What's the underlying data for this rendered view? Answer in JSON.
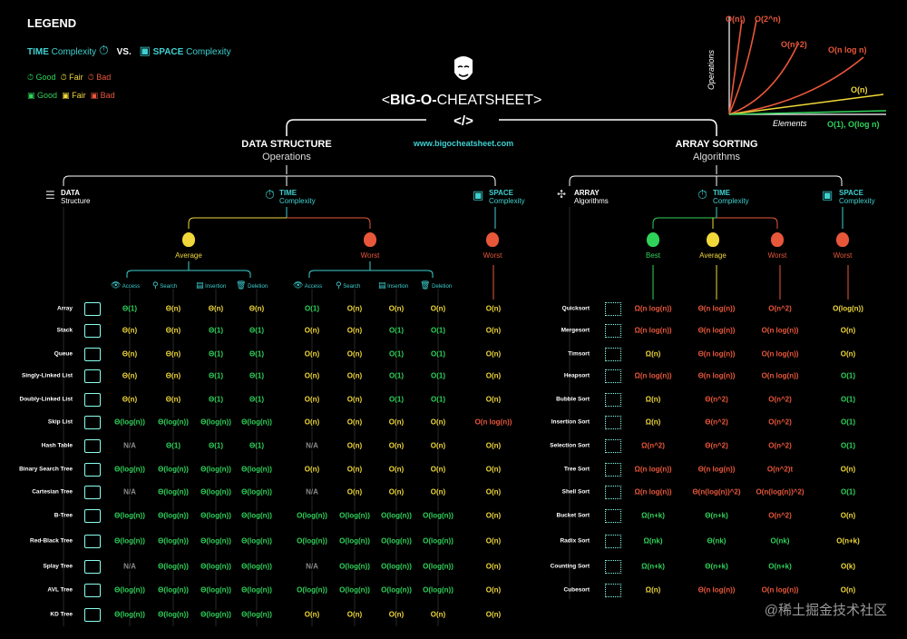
{
  "legend": {
    "title": "LEGEND",
    "time": "TIME",
    "time_rest": "Complexity",
    "vs": "VS.",
    "space": "SPACE",
    "space_rest": "Complexity",
    "good": "Good",
    "fair": "Fair",
    "bad": "Bad"
  },
  "title": {
    "pre": "<",
    "main": "BIG-O-",
    "rest": "CHEATSHEET",
    "post": ">",
    "code": "</>",
    "url": "www.bigocheatsheet.com"
  },
  "graph": {
    "ylabel": "Operations",
    "xlabel": "Elements",
    "curves": [
      "O(n!)",
      "O(2^n)",
      "O(n^2)",
      "O(n log n)",
      "O(n)",
      "O(1), O(log n)"
    ]
  },
  "ds": {
    "title": "DATA STRUCTURE",
    "subtitle": "Operations",
    "col_head": "DATA",
    "col_head2": "Structure",
    "time": "TIME",
    "time2": "Complexity",
    "space": "SPACE",
    "space2": "Complexity",
    "average": "Average",
    "worst": "Worst",
    "worst_space": "Worst",
    "ops": [
      "Access",
      "Search",
      "Insertion",
      "Deletion"
    ],
    "rows": [
      {
        "name": "Array",
        "avg": [
          "Θ(1)",
          "Θ(n)",
          "Θ(n)",
          "Θ(n)"
        ],
        "worst": [
          "O(1)",
          "O(n)",
          "O(n)",
          "O(n)"
        ],
        "space": "O(n)",
        "ac": [
          "g",
          "f",
          "f",
          "f"
        ],
        "wc": [
          "g",
          "f",
          "f",
          "f"
        ],
        "sc": "f"
      },
      {
        "name": "Stack",
        "avg": [
          "Θ(n)",
          "Θ(n)",
          "Θ(1)",
          "Θ(1)"
        ],
        "worst": [
          "O(n)",
          "O(n)",
          "O(1)",
          "O(1)"
        ],
        "space": "O(n)",
        "ac": [
          "f",
          "f",
          "g",
          "g"
        ],
        "wc": [
          "f",
          "f",
          "g",
          "g"
        ],
        "sc": "f"
      },
      {
        "name": "Queue",
        "avg": [
          "Θ(n)",
          "Θ(n)",
          "Θ(1)",
          "Θ(1)"
        ],
        "worst": [
          "O(n)",
          "O(n)",
          "O(1)",
          "O(1)"
        ],
        "space": "O(n)",
        "ac": [
          "f",
          "f",
          "g",
          "g"
        ],
        "wc": [
          "f",
          "f",
          "g",
          "g"
        ],
        "sc": "f"
      },
      {
        "name": "Singly-Linked List",
        "avg": [
          "Θ(n)",
          "Θ(n)",
          "Θ(1)",
          "Θ(1)"
        ],
        "worst": [
          "O(n)",
          "O(n)",
          "O(1)",
          "O(1)"
        ],
        "space": "O(n)",
        "ac": [
          "f",
          "f",
          "g",
          "g"
        ],
        "wc": [
          "f",
          "f",
          "g",
          "g"
        ],
        "sc": "f"
      },
      {
        "name": "Doubly-Linked List",
        "avg": [
          "Θ(n)",
          "Θ(n)",
          "Θ(1)",
          "Θ(1)"
        ],
        "worst": [
          "O(n)",
          "O(n)",
          "O(1)",
          "O(1)"
        ],
        "space": "O(n)",
        "ac": [
          "f",
          "f",
          "g",
          "g"
        ],
        "wc": [
          "f",
          "f",
          "g",
          "g"
        ],
        "sc": "f"
      },
      {
        "name": "Skip List",
        "avg": [
          "Θ(log(n))",
          "Θ(log(n))",
          "Θ(log(n))",
          "Θ(log(n))"
        ],
        "worst": [
          "O(n)",
          "O(n)",
          "O(n)",
          "O(n)"
        ],
        "space": "O(n log(n))",
        "ac": [
          "g",
          "g",
          "g",
          "g"
        ],
        "wc": [
          "f",
          "f",
          "f",
          "f"
        ],
        "sc": "b"
      },
      {
        "name": "Hash Table",
        "avg": [
          "N/A",
          "Θ(1)",
          "Θ(1)",
          "Θ(1)"
        ],
        "worst": [
          "N/A",
          "O(n)",
          "O(n)",
          "O(n)"
        ],
        "space": "O(n)",
        "ac": [
          "n",
          "g",
          "g",
          "g"
        ],
        "wc": [
          "n",
          "f",
          "f",
          "f"
        ],
        "sc": "f"
      },
      {
        "name": "Binary Search Tree",
        "avg": [
          "Θ(log(n))",
          "Θ(log(n))",
          "Θ(log(n))",
          "Θ(log(n))"
        ],
        "worst": [
          "O(n)",
          "O(n)",
          "O(n)",
          "O(n)"
        ],
        "space": "O(n)",
        "ac": [
          "g",
          "g",
          "g",
          "g"
        ],
        "wc": [
          "f",
          "f",
          "f",
          "f"
        ],
        "sc": "f"
      },
      {
        "name": "Cartesian Tree",
        "avg": [
          "N/A",
          "Θ(log(n))",
          "Θ(log(n))",
          "Θ(log(n))"
        ],
        "worst": [
          "N/A",
          "O(n)",
          "O(n)",
          "O(n)"
        ],
        "space": "O(n)",
        "ac": [
          "n",
          "g",
          "g",
          "g"
        ],
        "wc": [
          "n",
          "f",
          "f",
          "f"
        ],
        "sc": "f"
      },
      {
        "name": "B-Tree",
        "avg": [
          "Θ(log(n))",
          "Θ(log(n))",
          "Θ(log(n))",
          "Θ(log(n))"
        ],
        "worst": [
          "O(log(n))",
          "O(log(n))",
          "O(log(n))",
          "O(log(n))"
        ],
        "space": "O(n)",
        "ac": [
          "g",
          "g",
          "g",
          "g"
        ],
        "wc": [
          "g",
          "g",
          "g",
          "g"
        ],
        "sc": "f"
      },
      {
        "name": "Red-Black Tree",
        "avg": [
          "Θ(log(n))",
          "Θ(log(n))",
          "Θ(log(n))",
          "Θ(log(n))"
        ],
        "worst": [
          "O(log(n))",
          "O(log(n))",
          "O(log(n))",
          "O(log(n))"
        ],
        "space": "O(n)",
        "ac": [
          "g",
          "g",
          "g",
          "g"
        ],
        "wc": [
          "g",
          "g",
          "g",
          "g"
        ],
        "sc": "f"
      },
      {
        "name": "Splay Tree",
        "avg": [
          "N/A",
          "Θ(log(n))",
          "Θ(log(n))",
          "Θ(log(n))"
        ],
        "worst": [
          "N/A",
          "O(log(n))",
          "O(log(n))",
          "O(log(n))"
        ],
        "space": "O(n)",
        "ac": [
          "n",
          "g",
          "g",
          "g"
        ],
        "wc": [
          "n",
          "g",
          "g",
          "g"
        ],
        "sc": "f"
      },
      {
        "name": "AVL Tree",
        "avg": [
          "Θ(log(n))",
          "Θ(log(n))",
          "Θ(log(n))",
          "Θ(log(n))"
        ],
        "worst": [
          "O(log(n))",
          "O(log(n))",
          "O(log(n))",
          "O(log(n))"
        ],
        "space": "O(n)",
        "ac": [
          "g",
          "g",
          "g",
          "g"
        ],
        "wc": [
          "g",
          "g",
          "g",
          "g"
        ],
        "sc": "f"
      },
      {
        "name": "KD Tree",
        "avg": [
          "Θ(log(n))",
          "Θ(log(n))",
          "Θ(log(n))",
          "Θ(log(n))"
        ],
        "worst": [
          "O(n)",
          "O(n)",
          "O(n)",
          "O(n)"
        ],
        "space": "O(n)",
        "ac": [
          "g",
          "g",
          "g",
          "g"
        ],
        "wc": [
          "f",
          "f",
          "f",
          "f"
        ],
        "sc": "f"
      }
    ]
  },
  "sort": {
    "title": "ARRAY SORTING",
    "subtitle": "Algorithms",
    "col_head": "ARRAY",
    "col_head2": "Algorithms",
    "time": "TIME",
    "time2": "Complexity",
    "space": "SPACE",
    "space2": "Complexity",
    "best": "Best",
    "average": "Average",
    "worst": "Worst",
    "worst_space": "Worst",
    "rows": [
      {
        "name": "Quicksort",
        "v": [
          "Ω(n log(n))",
          "Θ(n log(n))",
          "O(n^2)",
          "O(log(n))"
        ],
        "c": [
          "b",
          "b",
          "b",
          "f"
        ]
      },
      {
        "name": "Mergesort",
        "v": [
          "Ω(n log(n))",
          "Θ(n log(n))",
          "O(n log(n))",
          "O(n)"
        ],
        "c": [
          "b",
          "b",
          "b",
          "f"
        ]
      },
      {
        "name": "Timsort",
        "v": [
          "Ω(n)",
          "Θ(n log(n))",
          "O(n log(n))",
          "O(n)"
        ],
        "c": [
          "f",
          "b",
          "b",
          "f"
        ]
      },
      {
        "name": "Heapsort",
        "v": [
          "Ω(n log(n))",
          "Θ(n log(n))",
          "O(n log(n))",
          "O(1)"
        ],
        "c": [
          "b",
          "b",
          "b",
          "g"
        ]
      },
      {
        "name": "Bubble Sort",
        "v": [
          "Ω(n)",
          "Θ(n^2)",
          "O(n^2)",
          "O(1)"
        ],
        "c": [
          "f",
          "b",
          "b",
          "g"
        ]
      },
      {
        "name": "Insertion Sort",
        "v": [
          "Ω(n)",
          "Θ(n^2)",
          "O(n^2)",
          "O(1)"
        ],
        "c": [
          "f",
          "b",
          "b",
          "g"
        ]
      },
      {
        "name": "Selection Sort",
        "v": [
          "Ω(n^2)",
          "Θ(n^2)",
          "O(n^2)",
          "O(1)"
        ],
        "c": [
          "b",
          "b",
          "b",
          "g"
        ]
      },
      {
        "name": "Tree Sort",
        "v": [
          "Ω(n log(n))",
          "Θ(n log(n))",
          "O(n^2)t",
          "O(n)"
        ],
        "c": [
          "b",
          "b",
          "b",
          "f"
        ]
      },
      {
        "name": "Shell Sort",
        "v": [
          "Ω(n log(n))",
          "Θ(n(log(n))^2)",
          "O(n(log(n))^2)",
          "O(1)"
        ],
        "c": [
          "b",
          "b",
          "b",
          "g"
        ]
      },
      {
        "name": "Bucket Sort",
        "v": [
          "Ω(n+k)",
          "Θ(n+k)",
          "O(n^2)",
          "O(n)"
        ],
        "c": [
          "g",
          "g",
          "b",
          "f"
        ]
      },
      {
        "name": "Radix Sort",
        "v": [
          "Ω(nk)",
          "Θ(nk)",
          "O(nk)",
          "O(n+k)"
        ],
        "c": [
          "g",
          "g",
          "g",
          "f"
        ]
      },
      {
        "name": "Counting Sort",
        "v": [
          "Ω(n+k)",
          "Θ(n+k)",
          "O(n+k)",
          "O(k)"
        ],
        "c": [
          "g",
          "g",
          "g",
          "f"
        ]
      },
      {
        "name": "Cubesort",
        "v": [
          "Ω(n)",
          "Θ(n log(n))",
          "O(n log(n))",
          "O(n)"
        ],
        "c": [
          "f",
          "b",
          "b",
          "f"
        ]
      }
    ]
  },
  "watermark": "@稀土掘金技术社区",
  "colors": {
    "good": "#2fd35a",
    "fair": "#f0d83a",
    "bad": "#e8573a",
    "accent": "#3fd0d0",
    "na": "#8a8a8a"
  }
}
